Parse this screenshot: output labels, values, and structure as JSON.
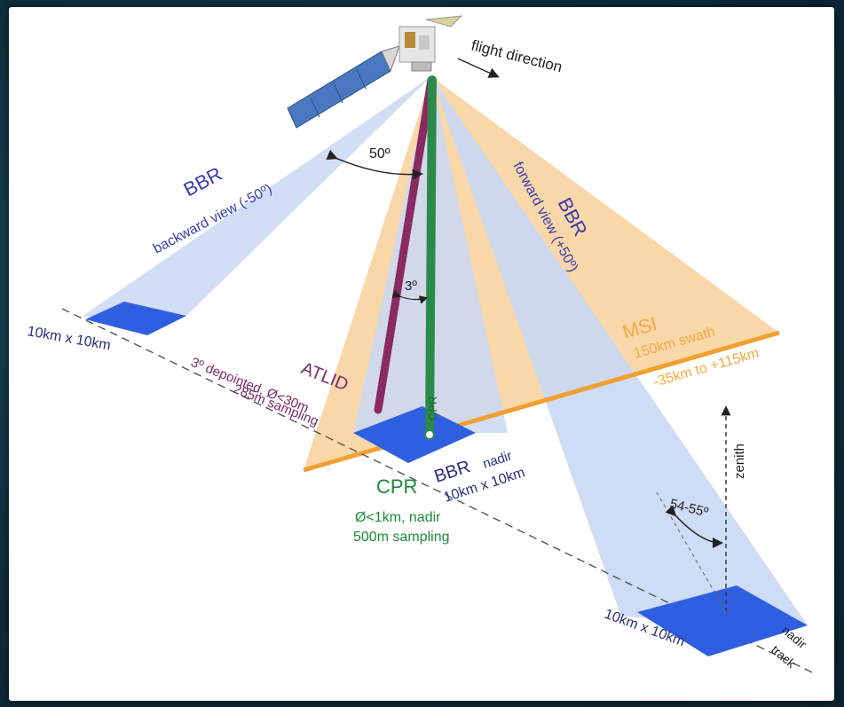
{
  "labels": {
    "flight_direction": "flight direction",
    "angle_50": "50º",
    "angle_3": "3º",
    "bbr_back_title": "BBR",
    "bbr_back_sub": "backward view (-50º)",
    "bbr_fwd_title": "BBR",
    "bbr_fwd_sub": "forward view (+50º)",
    "msi_title": "MSI",
    "msi_swath": "150km swath",
    "msi_range": "-35km to +115km",
    "atlid_title": "ATLID",
    "atlid_line1": "3º depointed, Ø<30m",
    "atlid_line2": "285m sampling",
    "cpr_beam": "CPR",
    "cpr_title": "CPR",
    "cpr_line1": "Ø<1km, nadir",
    "cpr_line2": "500m sampling",
    "bbr_nadir_title": "BBR",
    "bbr_nadir_word": "nadir",
    "bbr_nadir_size": "10km x 10km",
    "back_footprint": "10km x 10km",
    "fwd_footprint": "10km x 10km",
    "zenith": "zenith",
    "angle_54": "54-55º",
    "nadir_track_1": "nadir",
    "nadir_track_2": "track"
  },
  "colors": {
    "beam_blue": "#c9d8f4",
    "beam_orange": "#f8d3a0",
    "footprint": "#2f5fe0",
    "atlid": "#8a2a62",
    "cpr": "#2a8a4a",
    "msi_line": "#f0a030",
    "panel_blue": "#4a78c0"
  }
}
